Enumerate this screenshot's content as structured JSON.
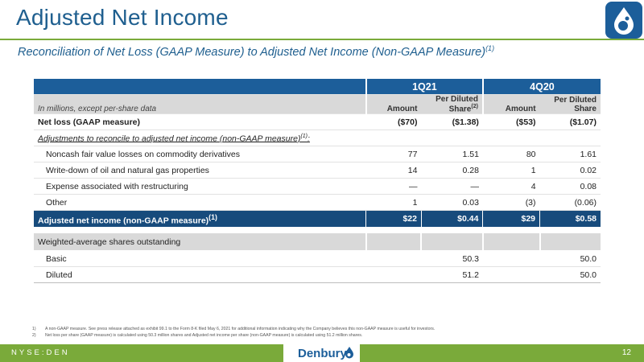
{
  "header": {
    "title": "Adjusted Net Income",
    "subtitle": "Reconciliation of Net Loss (GAAP Measure) to Adjusted Net Income (Non-GAAP Measure)",
    "subtitle_sup": "(1)"
  },
  "table": {
    "periods": [
      "1Q21",
      "4Q20"
    ],
    "units_note": "In millions, except per-share data",
    "col_amount": "Amount",
    "col_pds_1q21": "Per Diluted Share",
    "col_pds_1q21_sup": "(2)",
    "col_pds_4q20": "Per Diluted Share",
    "net_loss": {
      "label": "Net loss (GAAP measure)",
      "v": [
        "($70)",
        "($1.38)",
        "($53)",
        "($1.07)"
      ]
    },
    "adjustments_heading": "Adjustments to reconcile to adjusted net income (non-GAAP measure)",
    "adjustments_heading_sup": "(1)",
    "adjustments_heading_tail": ":",
    "adjustments": [
      {
        "label": "Noncash fair value losses on commodity derivatives",
        "v": [
          "77",
          "1.51",
          "80",
          "1.61"
        ]
      },
      {
        "label": "Write-down of oil and natural gas properties",
        "v": [
          "14",
          "0.28",
          "1",
          "0.02"
        ]
      },
      {
        "label": "Expense associated with restructuring",
        "v": [
          "—",
          "—",
          "4",
          "0.08"
        ]
      },
      {
        "label": "Other",
        "v": [
          "1",
          "0.03",
          "(3)",
          "(0.06)"
        ]
      }
    ],
    "adjusted": {
      "label": "Adjusted net income (non-GAAP measure)",
      "sup": "(1)",
      "v": [
        "$22",
        "$0.44",
        "$29",
        "$0.58"
      ]
    },
    "shares_heading": "Weighted-average shares outstanding",
    "shares": [
      {
        "label": "Basic",
        "v": [
          "",
          "50.3",
          "",
          "50.0"
        ]
      },
      {
        "label": "Diluted",
        "v": [
          "",
          "51.2",
          "",
          "50.0"
        ]
      }
    ]
  },
  "footnotes": [
    {
      "n": "1)",
      "text": "A non-GAAP measure. See press release attached as exhibit 99.1 to the Form 8-K filed May 6, 2021 for additional information indicating why the Company believes this non-GAAP measure is useful for investors."
    },
    {
      "n": "2)",
      "text": "Net loss per share (GAAP measure) is calculated using 50.3 million shares and Adjusted net income per share (non-GAAP measure) is calculated using 51.2 million shares."
    }
  ],
  "footer": {
    "ticker": "NYSE:DEN",
    "brand": "Denbury",
    "page": "12"
  },
  "colors": {
    "brand_blue": "#1c5e9a",
    "brand_green": "#7aaa3a",
    "header_gray": "#d9d9d9"
  }
}
